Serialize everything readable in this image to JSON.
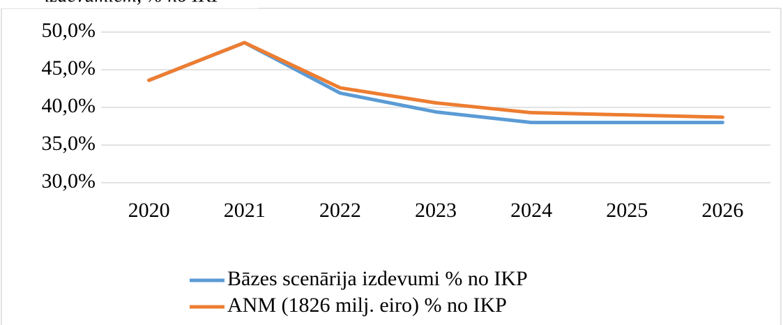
{
  "chart_data": {
    "type": "line",
    "title": "izdevumiem, % no IKP",
    "categories": [
      "2020",
      "2021",
      "2022",
      "2023",
      "2024",
      "2025",
      "2026"
    ],
    "series": [
      {
        "name": "Bāzes scenārija izdevumi % no IKP",
        "color": "#5b9bd5",
        "values": [
          43.6,
          48.6,
          41.9,
          39.4,
          38.0,
          38.0,
          38.0
        ]
      },
      {
        "name": "ANM (1826 milj. eiro) % no IKP",
        "color": "#ed7d31",
        "values": [
          43.6,
          48.6,
          42.6,
          40.6,
          39.3,
          39.0,
          38.7
        ]
      }
    ],
    "ylim": [
      30,
      50
    ],
    "yticks": [
      {
        "value": 30,
        "label": "30,0%"
      },
      {
        "value": 35,
        "label": "35,0%"
      },
      {
        "value": 40,
        "label": "40,0%"
      },
      {
        "value": 45,
        "label": "45,0%"
      },
      {
        "value": 50,
        "label": "50,0%"
      }
    ],
    "grid": true,
    "legend": "bottom"
  }
}
